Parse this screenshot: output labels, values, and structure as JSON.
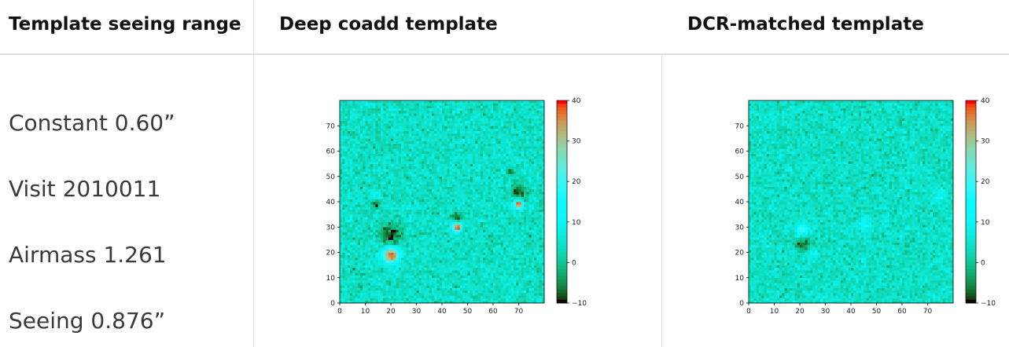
{
  "header": {
    "col1": "Template seeing range",
    "col2": "Deep coadd template",
    "col3": "DCR-matched template"
  },
  "info": [
    "Constant 0.60”",
    "Visit 2010011",
    "Airmass 1.261",
    "Seeing 0.876”"
  ],
  "chart_data": [
    {
      "type": "heatmap",
      "xlim": [
        0,
        80
      ],
      "ylim": [
        0,
        80
      ],
      "x_ticks": [
        "0",
        "10",
        "20",
        "30",
        "40",
        "50",
        "60",
        "70"
      ],
      "y_ticks": [
        "0",
        "10",
        "20",
        "30",
        "40",
        "50",
        "60",
        "70"
      ],
      "colorbar": {
        "min": -10,
        "max": 40,
        "ticks": [
          "40",
          "30",
          "20",
          "10",
          "0",
          "−10"
        ],
        "colormap": "rainbow"
      },
      "sources": [
        {
          "x": 20,
          "y": 19,
          "peak": 40,
          "sigma": 2.2
        },
        {
          "x": 20,
          "y": 27,
          "peak": -10,
          "sigma": 3.0
        },
        {
          "x": 14,
          "y": 43,
          "peak": 12,
          "sigma": 1.4
        },
        {
          "x": 14,
          "y": 39,
          "peak": -10,
          "sigma": 1.2
        },
        {
          "x": 46,
          "y": 30,
          "peak": 38,
          "sigma": 1.3
        },
        {
          "x": 46,
          "y": 34,
          "peak": -10,
          "sigma": 1.3
        },
        {
          "x": 70,
          "y": 39,
          "peak": 40,
          "sigma": 1.3
        },
        {
          "x": 70,
          "y": 44,
          "peak": -10,
          "sigma": 1.9
        },
        {
          "x": 67,
          "y": 52,
          "peak": -10,
          "sigma": 1.0
        }
      ]
    },
    {
      "type": "heatmap",
      "xlim": [
        0,
        80
      ],
      "ylim": [
        0,
        80
      ],
      "x_ticks": [
        "0",
        "10",
        "20",
        "30",
        "40",
        "50",
        "60",
        "70"
      ],
      "y_ticks": [
        "0",
        "10",
        "20",
        "30",
        "40",
        "50",
        "60",
        "70"
      ],
      "colorbar": {
        "min": -10,
        "max": 40,
        "ticks": [
          "40",
          "30",
          "20",
          "10",
          "0",
          "−10"
        ],
        "colormap": "rainbow"
      },
      "sources": [
        {
          "x": 21,
          "y": 29,
          "peak": 22,
          "sigma": 1.6
        },
        {
          "x": 21,
          "y": 23,
          "peak": -10,
          "sigma": 1.8
        },
        {
          "x": 25,
          "y": 20,
          "peak": 9,
          "sigma": 1.6
        },
        {
          "x": 46,
          "y": 31,
          "peak": 13,
          "sigma": 1.8
        },
        {
          "x": 75,
          "y": 42,
          "peak": 10,
          "sigma": 2.2
        }
      ]
    }
  ]
}
